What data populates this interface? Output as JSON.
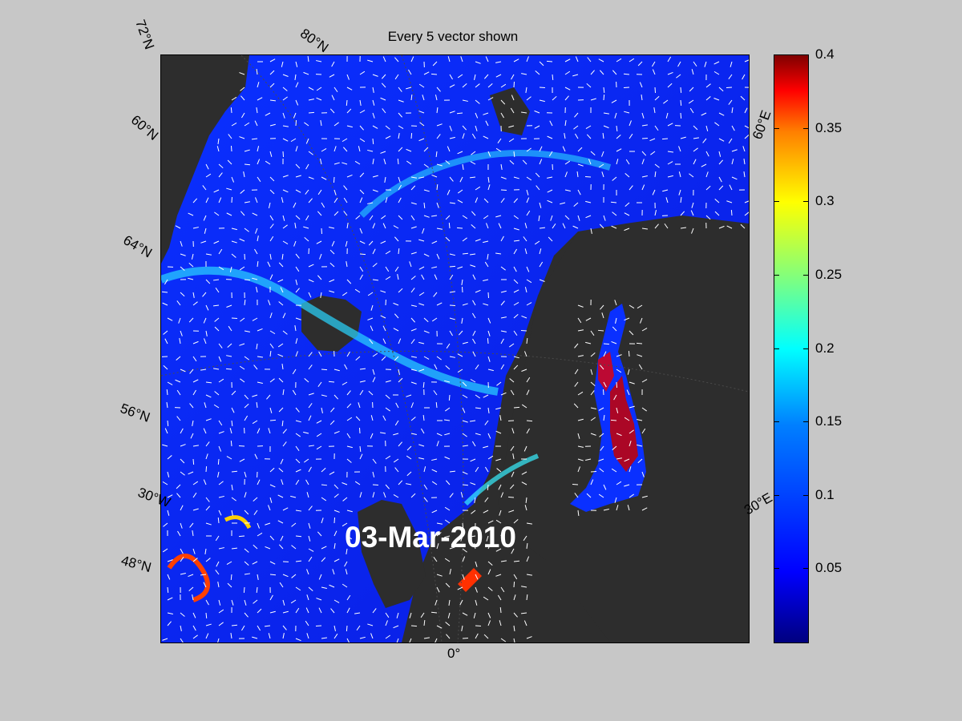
{
  "title": "Every 5 vector shown",
  "date_stamp": "03-Mar-2010",
  "lat_labels": [
    "72°N",
    "80°N",
    "60°N",
    "64°N",
    "56°N",
    "30°W",
    "48°N",
    "60°E",
    "30°E",
    "0°"
  ],
  "colorbar": {
    "ticks": [
      "0.4",
      "0.35",
      "0.3",
      "0.25",
      "0.2",
      "0.15",
      "0.1",
      "0.05"
    ],
    "range": [
      0,
      0.4
    ],
    "colormap": "jet"
  },
  "colors": {
    "background": "#c7c7c7",
    "land": "#2d2d2d",
    "sea_low": "#0a2cff",
    "sea_mid": "#1ec8ff",
    "sea_high": "#c80000",
    "vector": "#ffffff"
  }
}
